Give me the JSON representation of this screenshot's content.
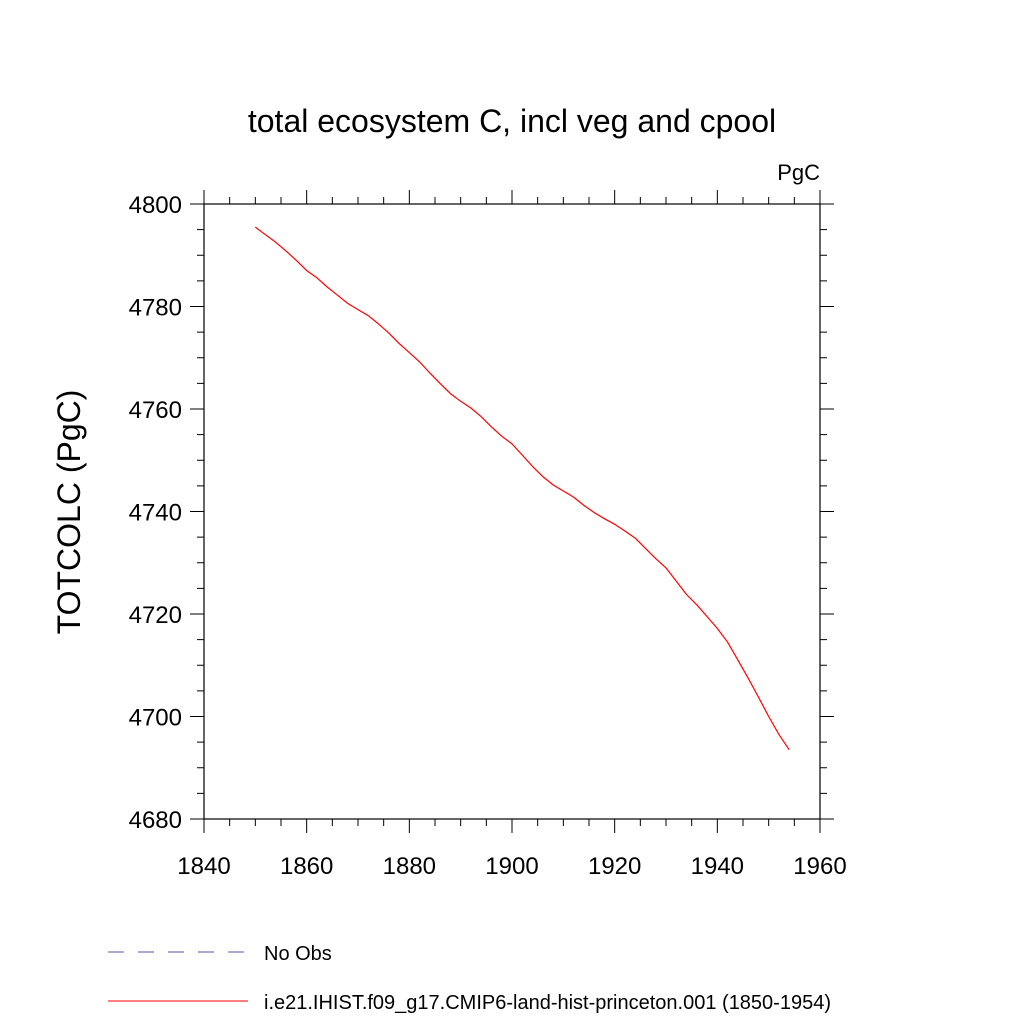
{
  "chart_data": {
    "type": "line",
    "title": "total ecosystem C, incl veg and cpool",
    "units": "PgC",
    "xlabel": "",
    "ylabel": "TOTCOLC  (PgC)",
    "xlim": [
      1840,
      1960
    ],
    "ylim": [
      4680,
      4800
    ],
    "xticks": [
      1840,
      1860,
      1880,
      1900,
      1920,
      1940,
      1960
    ],
    "yticks": [
      4680,
      4700,
      4720,
      4740,
      4760,
      4780,
      4800
    ],
    "grid": false,
    "legend_position": "bottom",
    "legend": [
      {
        "label": "No Obs",
        "color": "#5555aa",
        "style": "dashed"
      },
      {
        "label": "i.e21.IHIST.f09_g17.CMIP6-land-hist-princeton.001 (1850-1954)",
        "color": "#ff0000",
        "style": "solid"
      }
    ],
    "series": [
      {
        "name": "i.e21.IHIST.f09_g17.CMIP6-land-hist-princeton.001 (1850-1954)",
        "color": "#ff0000",
        "x": [
          1850,
          1852,
          1854,
          1856,
          1858,
          1860,
          1862,
          1864,
          1866,
          1868,
          1870,
          1872,
          1874,
          1876,
          1878,
          1880,
          1882,
          1884,
          1886,
          1888,
          1890,
          1892,
          1894,
          1896,
          1898,
          1900,
          1902,
          1904,
          1906,
          1908,
          1910,
          1912,
          1914,
          1916,
          1918,
          1920,
          1922,
          1924,
          1926,
          1928,
          1930,
          1932,
          1934,
          1936,
          1938,
          1940,
          1942,
          1944,
          1946,
          1948,
          1950,
          1952,
          1954
        ],
        "y": [
          4795.5,
          4794.0,
          4792.5,
          4790.8,
          4789.0,
          4787.0,
          4785.6,
          4783.8,
          4782.2,
          4780.6,
          4779.4,
          4778.2,
          4776.6,
          4774.8,
          4772.8,
          4771.0,
          4769.2,
          4767.0,
          4765.0,
          4763.0,
          4761.5,
          4760.2,
          4758.5,
          4756.5,
          4754.7,
          4753.2,
          4751.0,
          4748.8,
          4746.8,
          4745.2,
          4744.0,
          4742.8,
          4741.2,
          4739.8,
          4738.6,
          4737.5,
          4736.2,
          4734.8,
          4732.8,
          4730.8,
          4729.0,
          4726.4,
          4723.8,
          4721.8,
          4719.5,
          4717.2,
          4714.5,
          4711.0,
          4707.5,
          4703.8,
          4700.0,
          4696.5,
          4693.5
        ]
      }
    ]
  }
}
